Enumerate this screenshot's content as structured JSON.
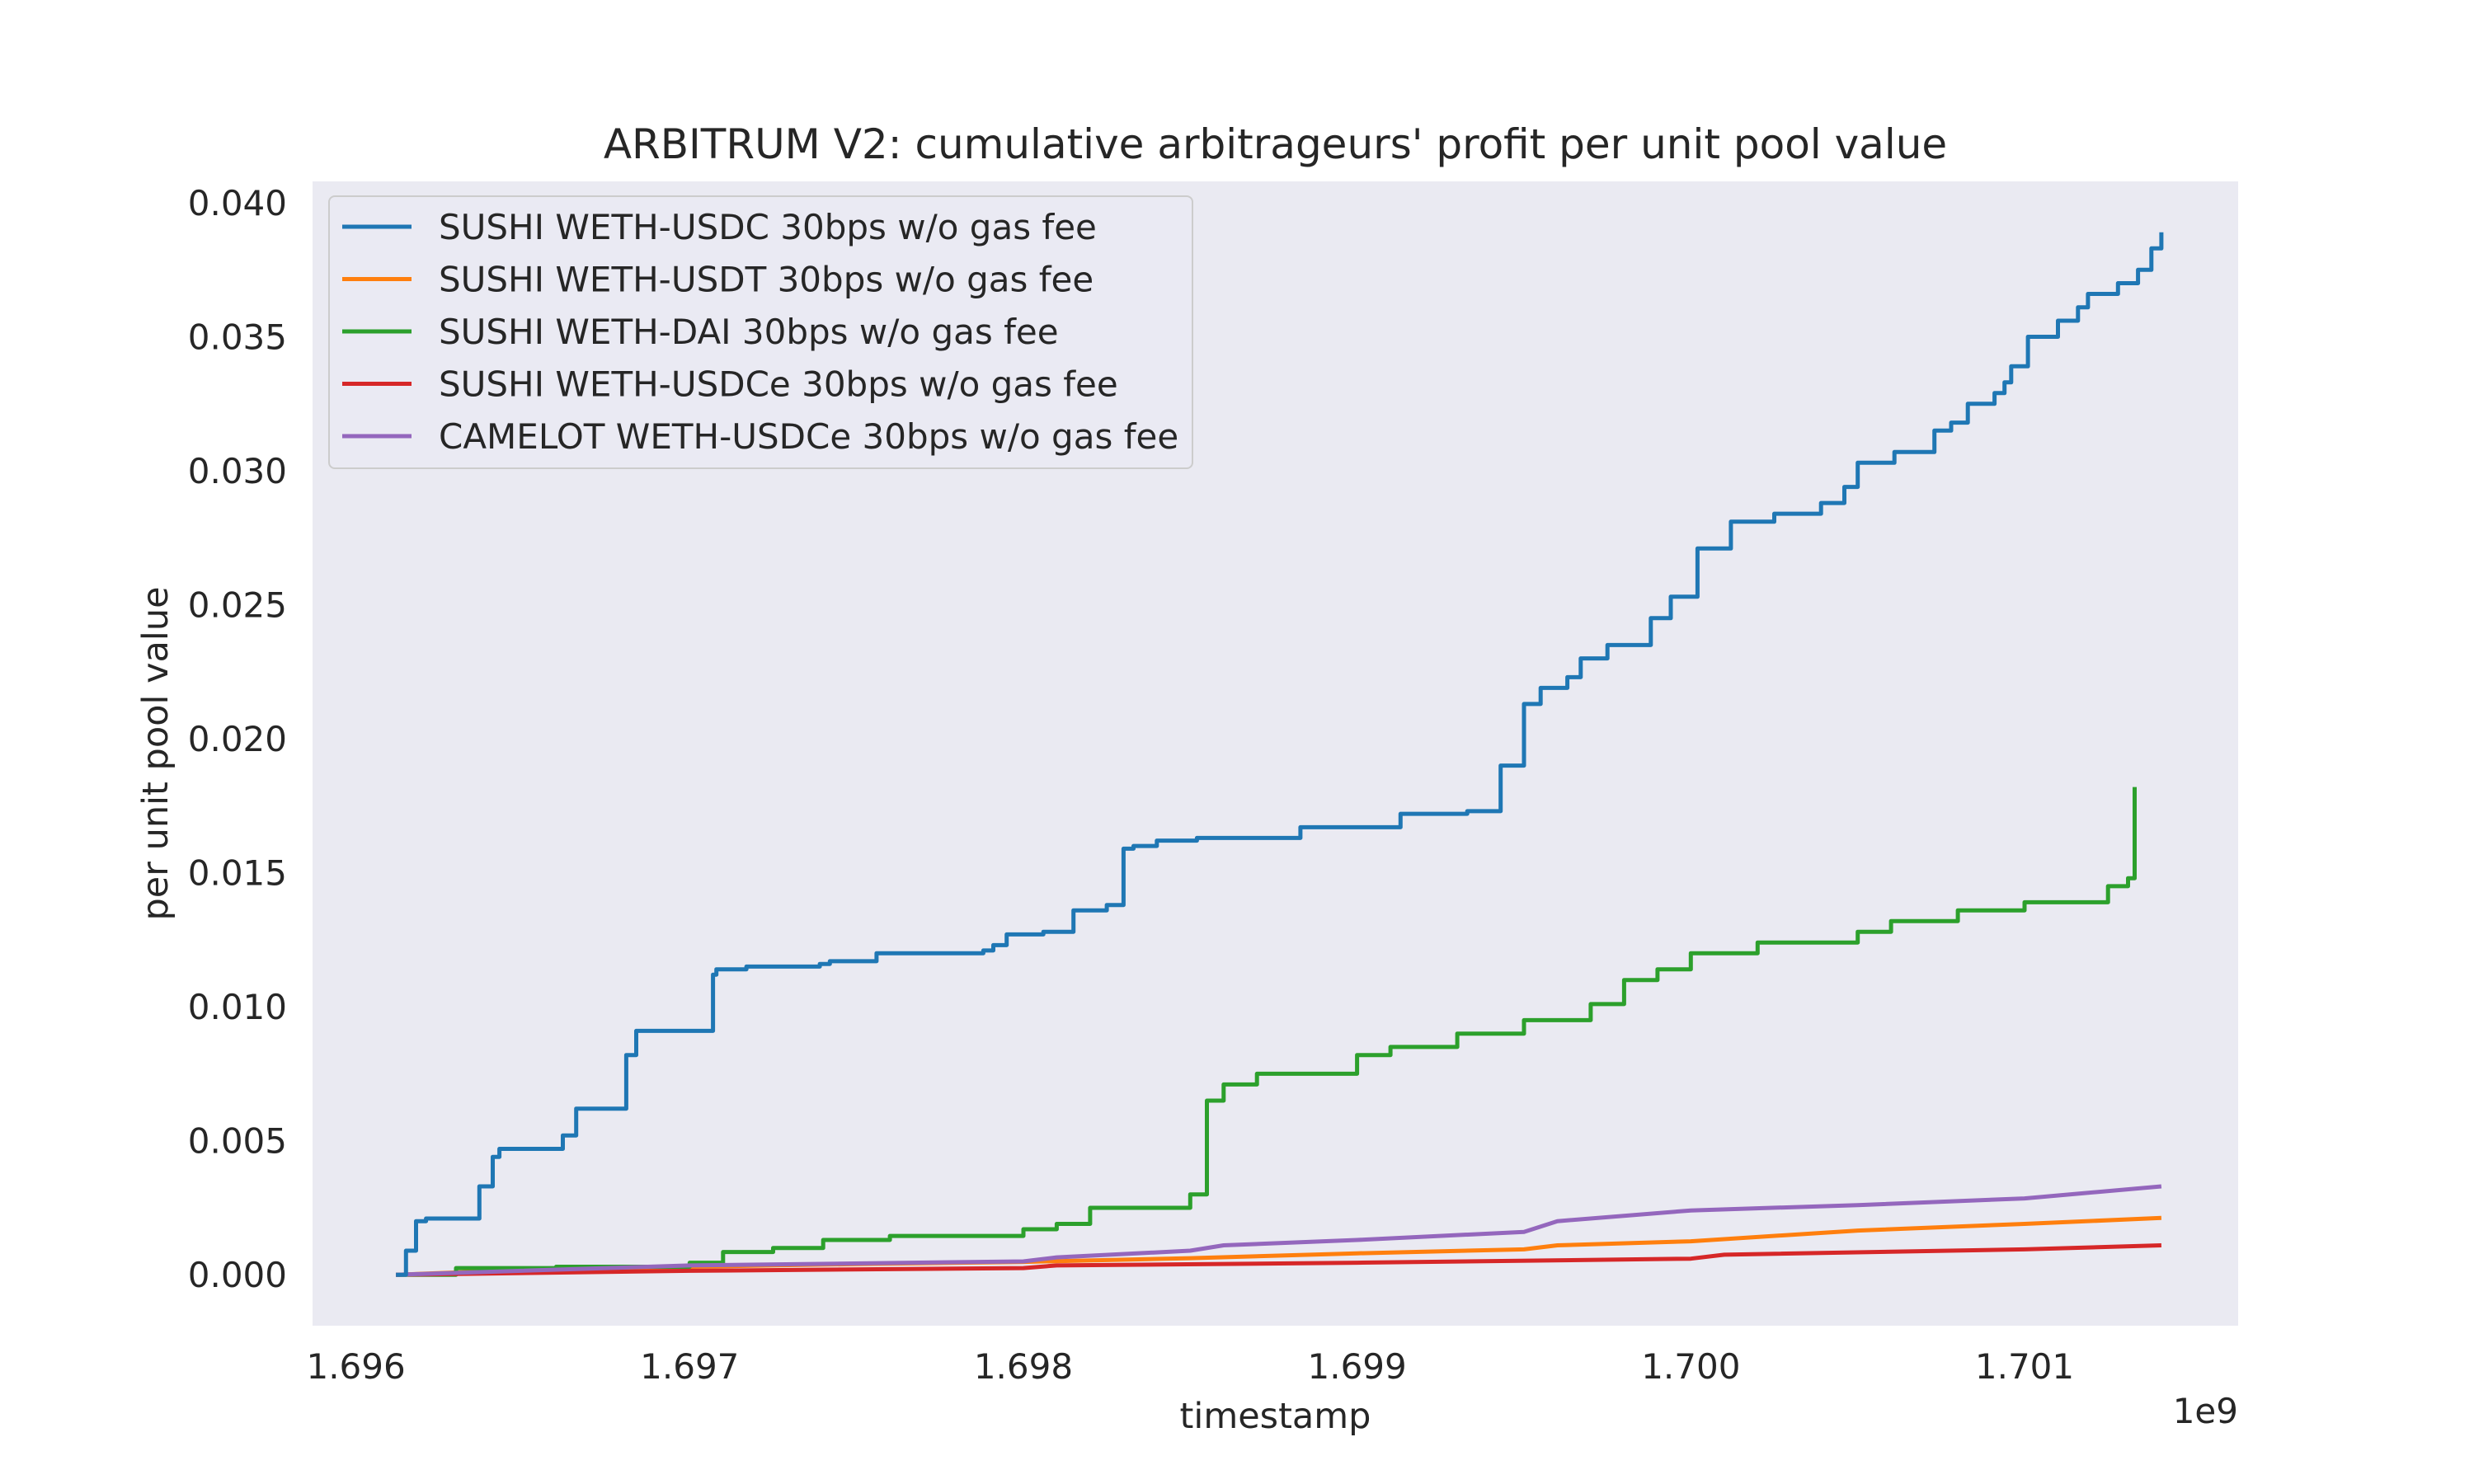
{
  "chart_data": {
    "type": "line",
    "title": "ARBITRUM V2: cumulative arbitrageurs' profit per unit pool value",
    "xlabel": "timestamp",
    "ylabel": "per unit pool value",
    "x_offset_label": "1e9",
    "xlim": [
      1.69587,
      1.70164
    ],
    "ylim": [
      -0.0019,
      0.0408
    ],
    "x_ticks": [
      1.696,
      1.697,
      1.698,
      1.699,
      1.7,
      1.701
    ],
    "x_tick_labels": [
      "1.696",
      "1.697",
      "1.698",
      "1.699",
      "1.700",
      "1.701"
    ],
    "y_ticks": [
      0.0,
      0.005,
      0.01,
      0.015,
      0.02,
      0.025,
      0.03,
      0.035,
      0.04
    ],
    "y_tick_labels": [
      "0.000",
      "0.005",
      "0.010",
      "0.015",
      "0.020",
      "0.025",
      "0.030",
      "0.035",
      "0.040"
    ],
    "grid": false,
    "legend_position": "upper-left",
    "background_color": "#eaeaf2",
    "series": [
      {
        "name": "SUSHI WETH-USDC 30bps w/o gas fee",
        "color": "#1f77b4",
        "step": true,
        "x": [
          1.69612,
          1.69615,
          1.69618,
          1.69621,
          1.69627,
          1.69637,
          1.69641,
          1.69643,
          1.69646,
          1.6965,
          1.69662,
          1.69666,
          1.69681,
          1.69682,
          1.69684,
          1.69694,
          1.697,
          1.69707,
          1.69708,
          1.69717,
          1.69739,
          1.69742,
          1.69756,
          1.69788,
          1.69791,
          1.69795,
          1.69806,
          1.69815,
          1.69825,
          1.6983,
          1.69833,
          1.6984,
          1.69852,
          1.69871,
          1.69883,
          1.69913,
          1.69933,
          1.69943,
          1.6995,
          1.69955,
          1.69963,
          1.69967,
          1.69975,
          1.69988,
          1.69994,
          1.70002,
          1.70012,
          1.70025,
          1.70039,
          1.70046,
          1.7005,
          1.70061,
          1.70073,
          1.70078,
          1.70083,
          1.70091,
          1.70094,
          1.70096,
          1.70101,
          1.7011,
          1.70116,
          1.70119,
          1.70128,
          1.70134,
          1.70138,
          1.70141
        ],
        "y": [
          0.0,
          0.0009,
          0.002,
          0.0021,
          0.0021,
          0.0033,
          0.0044,
          0.0047,
          0.0047,
          0.0047,
          0.0052,
          0.0062,
          0.0082,
          0.0082,
          0.0091,
          0.0091,
          0.0091,
          0.0112,
          0.0114,
          0.0115,
          0.0116,
          0.0117,
          0.012,
          0.0121,
          0.0123,
          0.0127,
          0.0128,
          0.0136,
          0.0138,
          0.0159,
          0.016,
          0.0162,
          0.0163,
          0.0163,
          0.0167,
          0.0172,
          0.0173,
          0.019,
          0.0213,
          0.0219,
          0.0223,
          0.023,
          0.0235,
          0.0245,
          0.0253,
          0.0271,
          0.0281,
          0.0284,
          0.0288,
          0.0294,
          0.0303,
          0.0307,
          0.0315,
          0.0318,
          0.0325,
          0.0329,
          0.0333,
          0.0339,
          0.035,
          0.0356,
          0.0361,
          0.0366,
          0.037,
          0.0375,
          0.0383,
          0.0389
        ]
      },
      {
        "name": "SUSHI WETH-USDT 30bps w/o gas fee",
        "color": "#ff7f0e",
        "step": false,
        "x": [
          1.69612,
          1.6965,
          1.697,
          1.6975,
          1.698,
          1.6985,
          1.699,
          1.6995,
          1.6996,
          1.7,
          1.7005,
          1.701,
          1.70141
        ],
        "y": [
          0.0,
          0.00018,
          0.0003,
          0.0004,
          0.00048,
          0.00062,
          0.0008,
          0.00095,
          0.0011,
          0.00125,
          0.00165,
          0.0019,
          0.00212
        ]
      },
      {
        "name": "SUSHI WETH-DAI 30bps w/o gas fee",
        "color": "#2ca02c",
        "step": true,
        "x": [
          1.69612,
          1.6963,
          1.6966,
          1.697,
          1.6971,
          1.69725,
          1.6974,
          1.6976,
          1.698,
          1.6981,
          1.6982,
          1.6985,
          1.69855,
          1.6986,
          1.6987,
          1.699,
          1.6991,
          1.6993,
          1.6995,
          1.6997,
          1.6998,
          1.6999,
          1.7,
          1.7002,
          1.7005,
          1.7006,
          1.7008,
          1.701,
          1.70125,
          1.70131,
          1.70133
        ],
        "y": [
          0.0,
          0.00025,
          0.0003,
          0.00045,
          0.00085,
          0.001,
          0.0013,
          0.00145,
          0.0017,
          0.0019,
          0.0025,
          0.003,
          0.0065,
          0.0071,
          0.0075,
          0.0082,
          0.0085,
          0.009,
          0.0095,
          0.0101,
          0.011,
          0.0114,
          0.012,
          0.0124,
          0.0128,
          0.0132,
          0.0136,
          0.0139,
          0.0145,
          0.0148,
          0.0182
        ]
      },
      {
        "name": "SUSHI WETH-USDCe 30bps w/o gas fee",
        "color": "#d62728",
        "step": false,
        "x": [
          1.69612,
          1.697,
          1.698,
          1.6981,
          1.699,
          1.7,
          1.7001,
          1.701,
          1.70141
        ],
        "y": [
          0.0,
          0.00015,
          0.00025,
          0.00035,
          0.00045,
          0.0006,
          0.00075,
          0.00095,
          0.0011
        ]
      },
      {
        "name": "CAMELOT WETH-USDCe 30bps w/o gas fee",
        "color": "#9467bd",
        "step": false,
        "x": [
          1.69612,
          1.697,
          1.698,
          1.6981,
          1.6985,
          1.6986,
          1.699,
          1.6995,
          1.6996,
          1.7,
          1.7005,
          1.701,
          1.70141
        ],
        "y": [
          0.0,
          0.00035,
          0.0005,
          0.00065,
          0.0009,
          0.0011,
          0.0013,
          0.0016,
          0.002,
          0.0024,
          0.0026,
          0.00285,
          0.0033
        ]
      }
    ]
  }
}
